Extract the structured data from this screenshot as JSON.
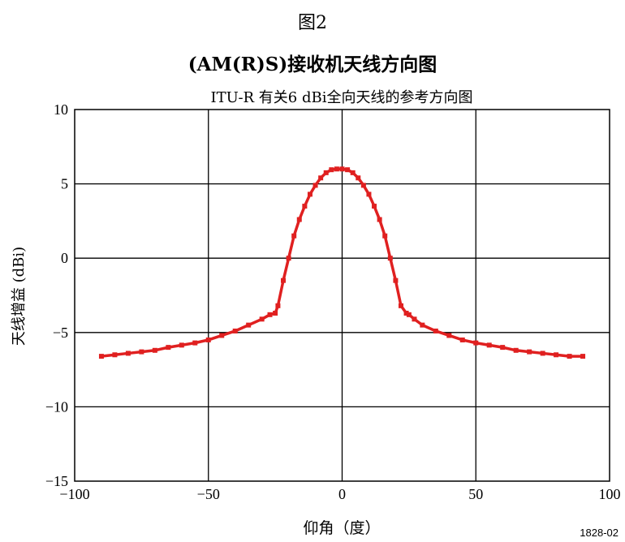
{
  "figure_label": "图2",
  "main_title": "(AM(R)S)接收机天线方向图",
  "figure_code": "1828-02",
  "chart_data": {
    "type": "line",
    "title": "ITU-R 有关6 dBi全向天线的参考方向图",
    "xlabel": "仰角（度）",
    "ylabel": "天线增益 (dBi)",
    "xlim": [
      -100,
      100
    ],
    "ylim": [
      -15,
      10
    ],
    "xticks": [
      -100,
      -50,
      0,
      50,
      100
    ],
    "yticks": [
      -15,
      -10,
      -5,
      0,
      5,
      10
    ],
    "xtick_labels": [
      "−100",
      "−50",
      "0",
      "50",
      "100"
    ],
    "ytick_labels": [
      "−15",
      "−10",
      "−5",
      "0",
      "5",
      "10"
    ],
    "grid": true,
    "series": [
      {
        "color": "#e02020",
        "x": [
          -90,
          -85,
          -80,
          -75,
          -70,
          -65,
          -60,
          -55,
          -50,
          -45,
          -40,
          -35,
          -30,
          -27,
          -25,
          -24,
          -22,
          -20,
          -18,
          -16,
          -14,
          -12,
          -10,
          -8,
          -6,
          -4,
          -2,
          0,
          2,
          4,
          6,
          8,
          10,
          12,
          14,
          16,
          18,
          20,
          22,
          24,
          25,
          27,
          30,
          35,
          40,
          45,
          50,
          55,
          60,
          65,
          70,
          75,
          80,
          85,
          90
        ],
        "y": [
          -6.6,
          -6.5,
          -6.4,
          -6.3,
          -6.2,
          -6.0,
          -5.85,
          -5.7,
          -5.5,
          -5.2,
          -4.9,
          -4.5,
          -4.1,
          -3.8,
          -3.7,
          -3.2,
          -1.5,
          0.0,
          1.5,
          2.6,
          3.5,
          4.3,
          4.9,
          5.4,
          5.75,
          5.95,
          6.0,
          6.0,
          5.95,
          5.75,
          5.4,
          4.9,
          4.3,
          3.5,
          2.6,
          1.5,
          0.0,
          -1.5,
          -3.2,
          -3.7,
          -3.8,
          -4.1,
          -4.5,
          -4.9,
          -5.2,
          -5.5,
          -5.7,
          -5.85,
          -6.0,
          -6.2,
          -6.3,
          -6.4,
          -6.5,
          -6.6,
          -6.6
        ]
      }
    ]
  }
}
